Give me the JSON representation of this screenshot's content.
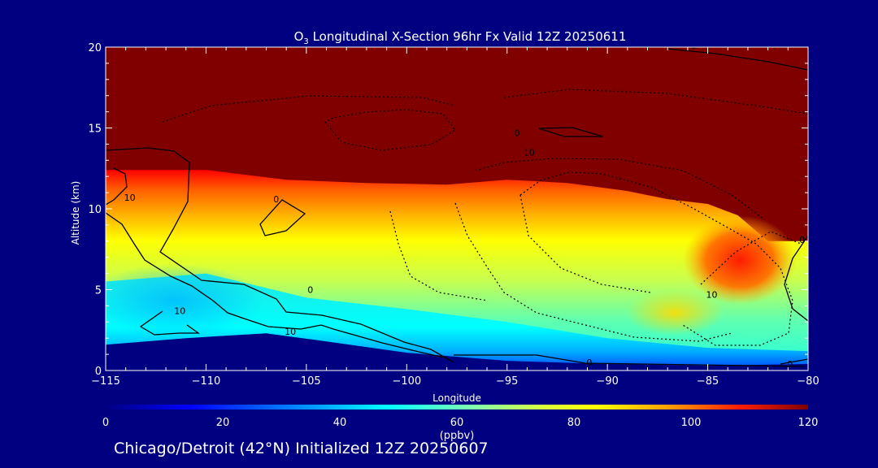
{
  "chart_data": {
    "type": "heatmap",
    "title_parts": {
      "pre": "O",
      "sub": "3",
      "post": " Longitudinal X-Section 96hr  Fx Valid 12Z 20250611"
    },
    "xlabel": "Longitude",
    "ylabel": "Altitude (km)",
    "xlim": [
      -115,
      -80
    ],
    "ylim": [
      0,
      20
    ],
    "xticks": [
      "−115",
      "−110",
      "−105",
      "−100",
      "−95",
      "−90",
      "−85",
      "−80"
    ],
    "yticks": [
      "0",
      "5",
      "10",
      "15",
      "20"
    ],
    "colorbar": {
      "ticks": [
        "0",
        "20",
        "40",
        "60",
        "80",
        "100",
        "120"
      ],
      "range": [
        0,
        120
      ],
      "unit": "(ppbv)"
    },
    "field_description_points": {
      "tropopause_height_km": [
        [
          -115,
          12.4
        ],
        [
          -112,
          12.4
        ],
        [
          -110,
          12.4
        ],
        [
          -106,
          11.8
        ],
        [
          -102,
          11.6
        ],
        [
          -98,
          11.5
        ],
        [
          -95,
          11.8
        ],
        [
          -92,
          11.6
        ],
        [
          -89,
          11.1
        ],
        [
          -87,
          10.6
        ],
        [
          -85,
          10.3
        ],
        [
          -83.5,
          9.6
        ],
        [
          -82,
          8.0
        ],
        [
          -80,
          8.0
        ]
      ],
      "ground_height_km": [
        [
          -115,
          1.6
        ],
        [
          -111,
          2.0
        ],
        [
          -107,
          2.3
        ],
        [
          -104,
          1.8
        ],
        [
          -100,
          1.1
        ],
        [
          -95,
          0.6
        ],
        [
          -90,
          0.4
        ],
        [
          -85,
          0.3
        ],
        [
          -80,
          0.4
        ]
      ]
    },
    "contour_labels": [
      {
        "text": "0",
        "lon": -106.5,
        "alt": 10.4
      },
      {
        "text": "0",
        "lon": -94.5,
        "alt": 14.5
      },
      {
        "text": "0",
        "lon": -104.8,
        "alt": 4.8
      },
      {
        "text": "0",
        "lon": -90.9,
        "alt": 0.3
      },
      {
        "text": "0",
        "lon": -80.9,
        "alt": 0.2
      },
      {
        "text": "0",
        "lon": -80.3,
        "alt": 7.9
      },
      {
        "text": "0",
        "lon": -85.7,
        "alt": 19.9
      },
      {
        "text": "10",
        "lon": -113.8,
        "alt": 10.5
      },
      {
        "text": "10",
        "lon": -111.3,
        "alt": 3.5
      },
      {
        "text": "10",
        "lon": -105.8,
        "alt": 2.2
      },
      {
        "text": "10",
        "lon": -93.9,
        "alt": 13.3
      },
      {
        "text": "10",
        "lon": -84.8,
        "alt": 4.5
      }
    ]
  },
  "caption": "Chicago/Detroit (42°N) Initialized 12Z 20250607"
}
